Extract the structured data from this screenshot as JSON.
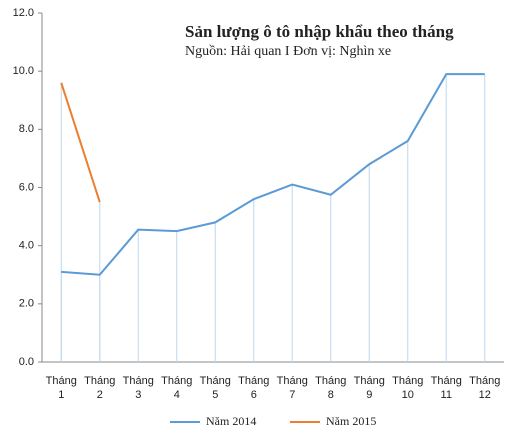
{
  "chart_data": {
    "type": "line",
    "title": "Sản lượng ô tô nhập khẩu theo tháng",
    "subtitle": "Nguồn: Hải quan I Đơn vị: Nghìn xe",
    "categories": [
      "Tháng 1",
      "Tháng 2",
      "Tháng 3",
      "Tháng 4",
      "Tháng 5",
      "Tháng 6",
      "Tháng 7",
      "Tháng 8",
      "Tháng 9",
      "Tháng 10",
      "Tháng 11",
      "Tháng 12"
    ],
    "series": [
      {
        "name": "Năm 2014",
        "color": "#5b9bd5",
        "values": [
          3.1,
          3.0,
          4.55,
          4.5,
          4.8,
          5.6,
          6.1,
          5.75,
          6.8,
          7.6,
          9.9,
          9.9
        ]
      },
      {
        "name": "Năm 2015",
        "color": "#ed7d31",
        "values": [
          9.6,
          5.5,
          null,
          null,
          null,
          null,
          null,
          null,
          null,
          null,
          null,
          null
        ]
      }
    ],
    "drop_line_color": "#bdd7ee",
    "ylim": [
      0,
      12
    ],
    "yticks": [
      {
        "value": 0,
        "label": "0.0"
      },
      {
        "value": 2,
        "label": "2.0"
      },
      {
        "value": 4,
        "label": "4.0"
      },
      {
        "value": 6,
        "label": "6.0"
      },
      {
        "value": 8,
        "label": "8.0"
      },
      {
        "value": 10,
        "label": "10.0"
      },
      {
        "value": 12,
        "label": "12.0"
      }
    ],
    "legend": "bottom"
  }
}
